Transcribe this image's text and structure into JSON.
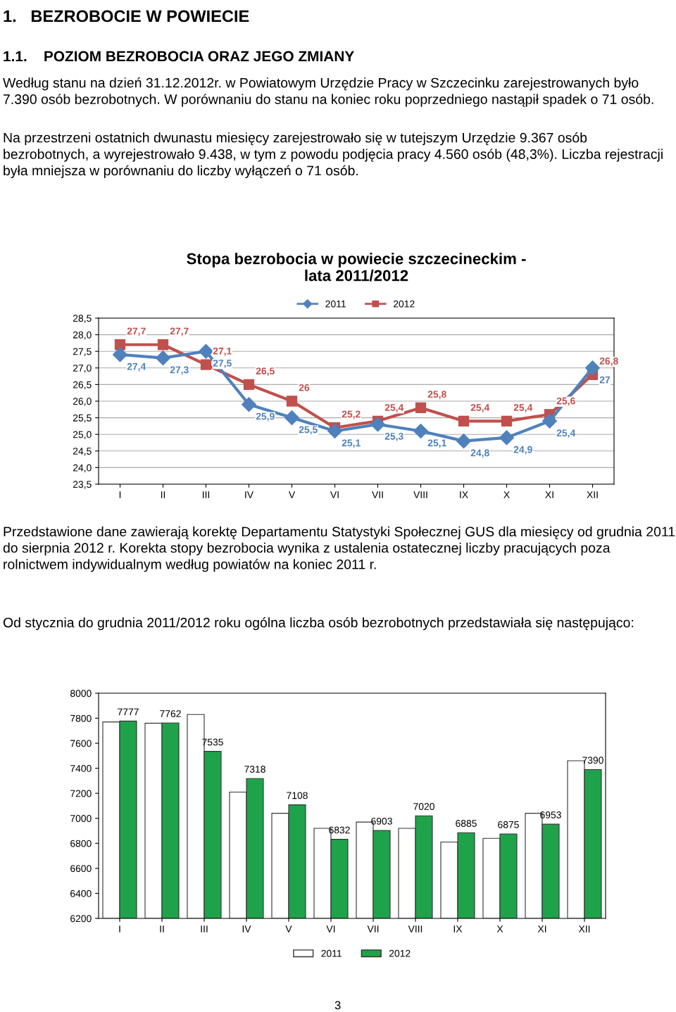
{
  "chart_data": [
    {
      "type": "line",
      "title": "Stopa bezrobocia w powiecie szczecineckim -\nlata 2011/2012",
      "annotations": [
        "1.   BEZROBOCIE W POWIECIE",
        "1.1.    POZIOM BEZROBOCIA ORAZ JEGO ZMIANY",
        "Według stanu na dzień 31.12.2012r. w Powiatowym Urzędzie Pracy w Szczecinku zarejestrowanych było 7.390 osób bezrobotnych. W porównaniu do stanu na koniec roku poprzedniego nastąpił spadek o 71 osób.",
        "Na przestrzeni ostatnich dwunastu miesięcy zarejestrowało się w tutejszym Urzędzie 9.367 osób bezrobotnych, a wyrejestrowało 9.438, w tym z powodu podjęcia pracy 4.560 osób (48,3%). Liczba rejestracji była mniejsza w porównaniu do liczby wyłączeń o 71 osób."
      ],
      "categories": [
        "I",
        "II",
        "III",
        "IV",
        "V",
        "VI",
        "VII",
        "VIII",
        "IX",
        "X",
        "XI",
        "XII"
      ],
      "series": [
        {
          "name": "2011",
          "color": "#4f81bd",
          "marker": "diamond",
          "values": [
            27.4,
            27.3,
            27.5,
            25.9,
            25.5,
            25.1,
            25.3,
            25.1,
            24.8,
            24.9,
            25.4,
            27
          ],
          "value_labels": [
            "27,4",
            "27,3",
            "27,5",
            "25,9",
            "25,5",
            "25,1",
            "25,3",
            "25,1",
            "24,8",
            "24,9",
            "25,4",
            "27"
          ]
        },
        {
          "name": "2012",
          "color": "#c0504d",
          "marker": "square",
          "values": [
            27.7,
            27.7,
            27.1,
            26.5,
            26,
            25.2,
            25.4,
            25.8,
            25.4,
            25.4,
            25.6,
            26.8
          ],
          "value_labels": [
            "27,7",
            "27,7",
            "27,1",
            "26,5",
            "26",
            "25,2",
            "25,4",
            "25,8",
            "25,4",
            "25,4",
            "25,6",
            "26,8"
          ]
        }
      ],
      "ylim": [
        23.5,
        28.5
      ],
      "yticks": [
        {
          "value": 23.5,
          "label": "23,5"
        },
        {
          "value": 24,
          "label": "24,0"
        },
        {
          "value": 24.5,
          "label": "24,5"
        },
        {
          "value": 25,
          "label": "25,0"
        },
        {
          "value": 25.5,
          "label": "25,5"
        },
        {
          "value": 26,
          "label": "26,0"
        },
        {
          "value": 26.5,
          "label": "26,5"
        },
        {
          "value": 27,
          "label": "27,0"
        },
        {
          "value": 27.5,
          "label": "27,5"
        },
        {
          "value": 28,
          "label": "28,0"
        },
        {
          "value": 28.5,
          "label": "28,5"
        }
      ],
      "grid": "y",
      "legend": "top"
    },
    {
      "type": "bar",
      "annotations": [
        "Przedstawione dane zawierają korektę Departamentu Statystyki Społecznej GUS dla miesięcy od grudnia 2011 do sierpnia 2012 r. Korekta stopy bezrobocia wynika z ustalenia ostatecznej liczby pracujących poza rolnictwem indywidualnym według powiatów na koniec 2011 r.",
        "Od stycznia do grudnia 2011/2012 roku ogólna liczba osób bezrobotnych przedstawiała się następująco:",
        "3"
      ],
      "categories": [
        "I",
        "II",
        "III",
        "IV",
        "V",
        "VI",
        "VII",
        "VIII",
        "IX",
        "X",
        "XI",
        "XII"
      ],
      "series": [
        {
          "name": "2011",
          "color": "#ffffff",
          "values": [
            7770,
            7760,
            7830,
            7210,
            7040,
            6920,
            6970,
            6920,
            6810,
            6840,
            7040,
            7460
          ]
        },
        {
          "name": "2012",
          "color": "#1fa34a",
          "values": [
            7777,
            7762,
            7535,
            7318,
            7108,
            6832,
            6903,
            7020,
            6885,
            6875,
            6953,
            7390
          ],
          "value_labels": [
            "7777",
            "7762",
            "7535",
            "7318",
            "7108",
            "6832",
            "6903",
            "7020",
            "6885",
            "6875",
            "6953",
            "7390"
          ]
        }
      ],
      "ylim": [
        6200,
        8000
      ],
      "yticks": [
        6200,
        6400,
        6600,
        6800,
        7000,
        7200,
        7400,
        7600,
        7800,
        8000
      ],
      "grid": false,
      "legend": "bottom"
    }
  ]
}
